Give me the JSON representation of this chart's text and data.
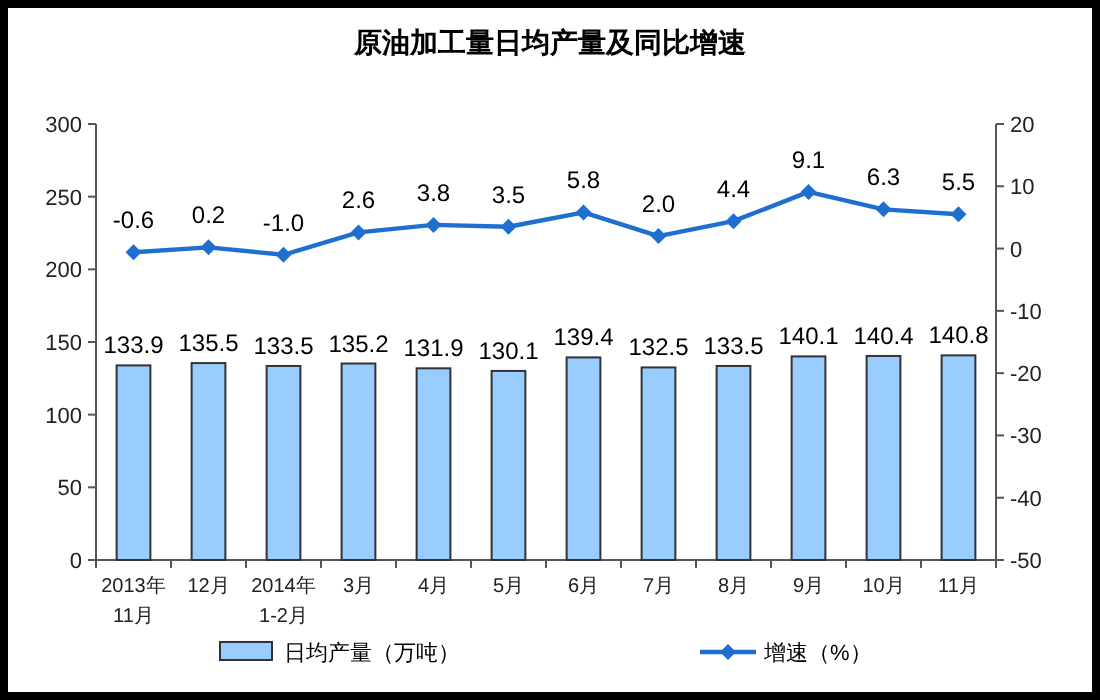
{
  "chart_data": {
    "type": "bar",
    "title": "原油加工量日均产量及同比增速",
    "categories": [
      "2013年\n11月",
      "12月",
      "2014年\n1-2月",
      "3月",
      "4月",
      "5月",
      "6月",
      "7月",
      "8月",
      "9月",
      "10月",
      "11月"
    ],
    "series": [
      {
        "name": "日均产量（万吨）",
        "color": "#99ccff",
        "values": [
          133.9,
          135.5,
          133.5,
          135.2,
          131.9,
          130.1,
          139.4,
          132.5,
          133.5,
          140.1,
          140.4,
          140.8
        ]
      },
      {
        "name": "增速（%）",
        "type": "line",
        "axis": "y2",
        "color": "#1f6fd0",
        "marker": "diamond",
        "values": [
          -0.6,
          0.2,
          -1.0,
          2.6,
          3.8,
          3.5,
          5.8,
          2.0,
          4.4,
          9.1,
          6.3,
          5.5
        ],
        "value_labels": [
          "-0.6",
          "0.2",
          "-1.0",
          "2.6",
          "3.8",
          "3.5",
          "5.8",
          "2.0",
          "4.4",
          "9.1",
          "6.3",
          "5.5"
        ]
      }
    ],
    "ylim": [
      0,
      300
    ],
    "yticks": [
      0,
      50,
      100,
      150,
      200,
      250,
      300
    ],
    "y2lim": [
      -50,
      20
    ],
    "y2ticks": [
      -50,
      -40,
      -30,
      -20,
      -10,
      0,
      10,
      20
    ],
    "data_labels": true,
    "legend": "bottom",
    "grid": false
  }
}
